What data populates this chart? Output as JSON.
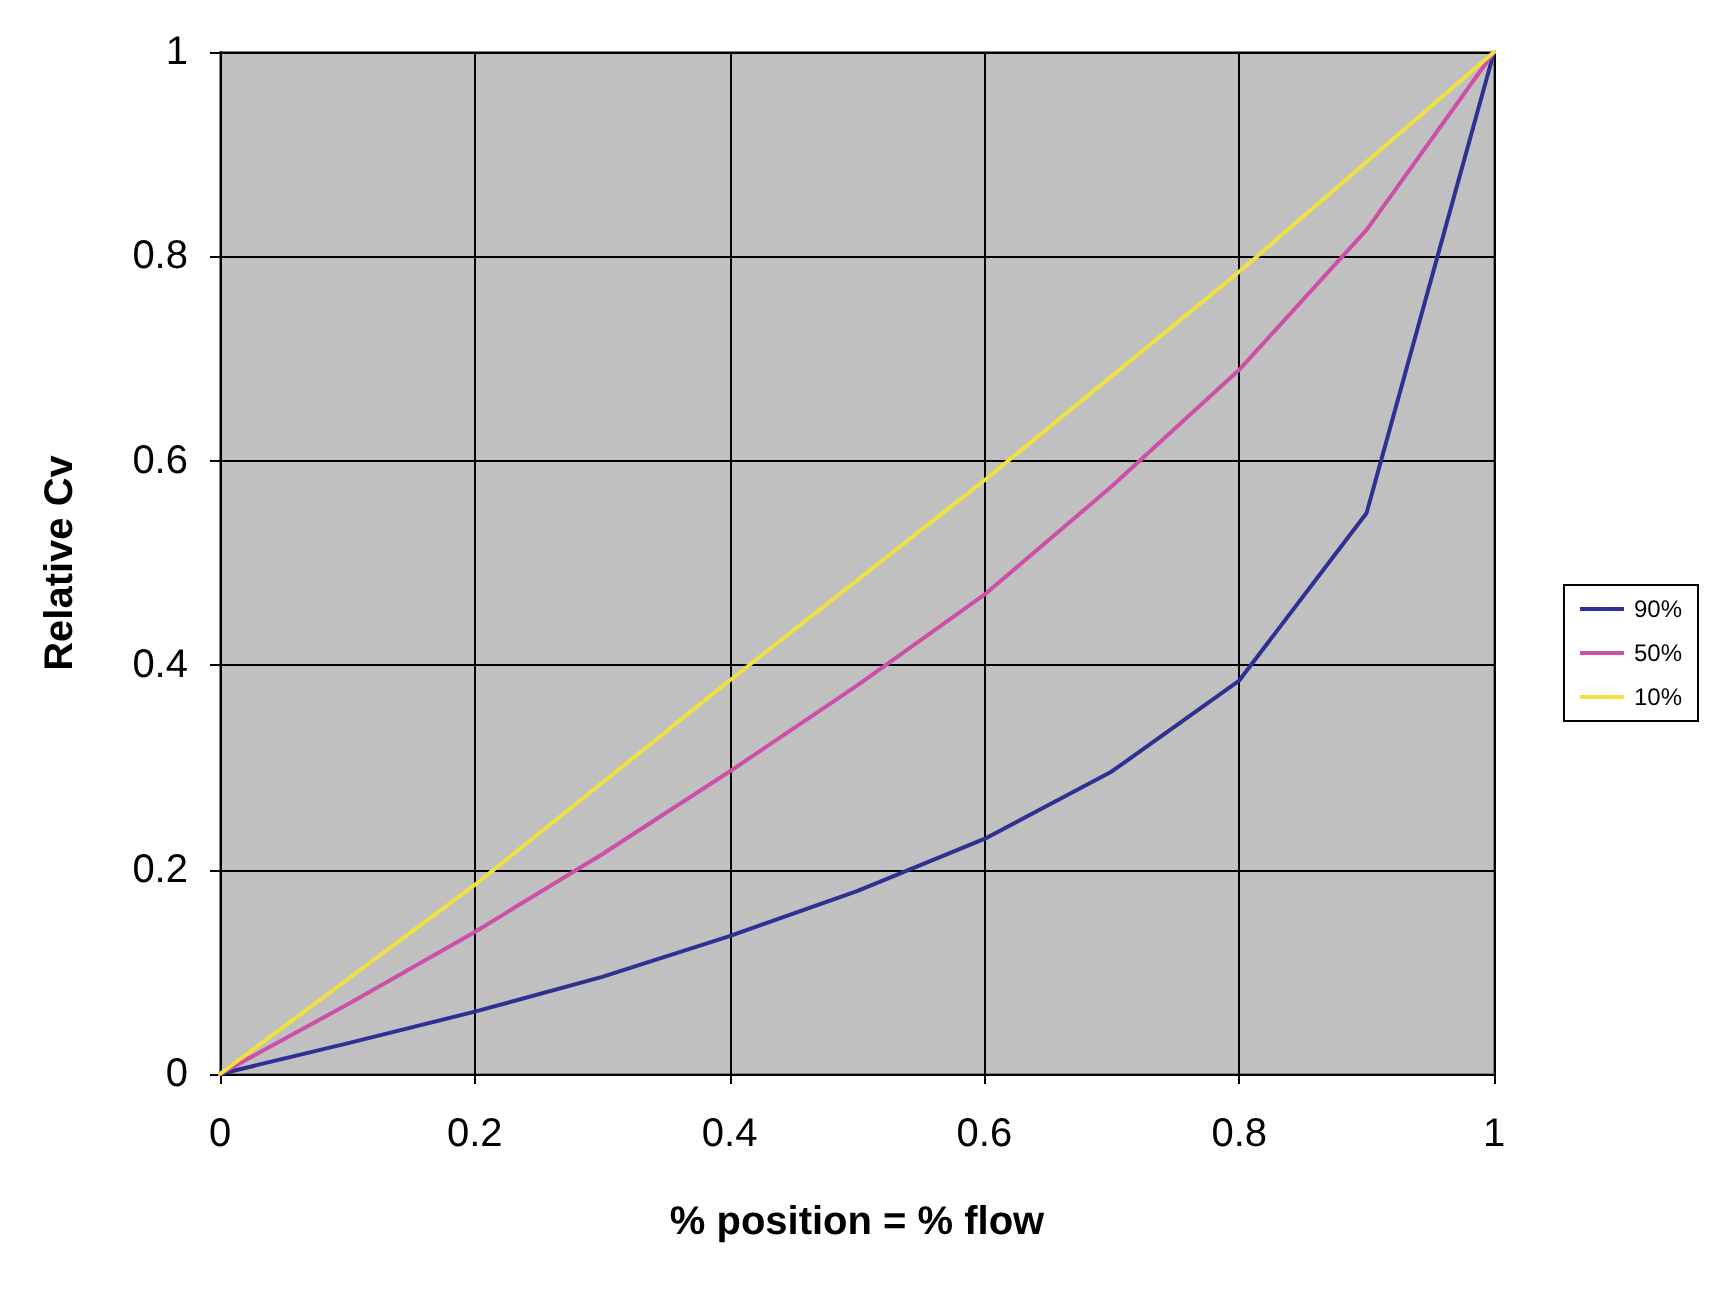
{
  "chart_data": {
    "type": "line",
    "xlabel": "% position = % flow",
    "ylabel": "Relative Cv",
    "xlim": [
      0,
      1
    ],
    "ylim": [
      0,
      1
    ],
    "xticks": [
      0,
      0.2,
      0.4,
      0.6,
      0.8,
      1
    ],
    "yticks": [
      0,
      0.2,
      0.4,
      0.6,
      0.8,
      1
    ],
    "grid": true,
    "legend": "right",
    "marker": "none",
    "line_style": "solid",
    "series": [
      {
        "name": "90%",
        "color": "#2e3192",
        "x": [
          0,
          0.1,
          0.2,
          0.3,
          0.4,
          0.5,
          0.6,
          0.7,
          0.8,
          0.9,
          1
        ],
        "values": [
          0,
          0.03,
          0.061,
          0.095,
          0.135,
          0.179,
          0.23,
          0.296,
          0.385,
          0.549,
          1
        ]
      },
      {
        "name": "50%",
        "color": "#cc4fa8",
        "x": [
          0,
          0.1,
          0.2,
          0.3,
          0.4,
          0.5,
          0.6,
          0.7,
          0.8,
          0.9,
          1
        ],
        "values": [
          0,
          0.068,
          0.139,
          0.215,
          0.296,
          0.38,
          0.469,
          0.575,
          0.689,
          0.826,
          1
        ]
      },
      {
        "name": "10%",
        "color": "#f0e040",
        "x": [
          0,
          0.2,
          0.4,
          0.6,
          0.8,
          1
        ],
        "values": [
          0,
          0.185,
          0.385,
          0.581,
          0.785,
          1
        ]
      }
    ]
  }
}
